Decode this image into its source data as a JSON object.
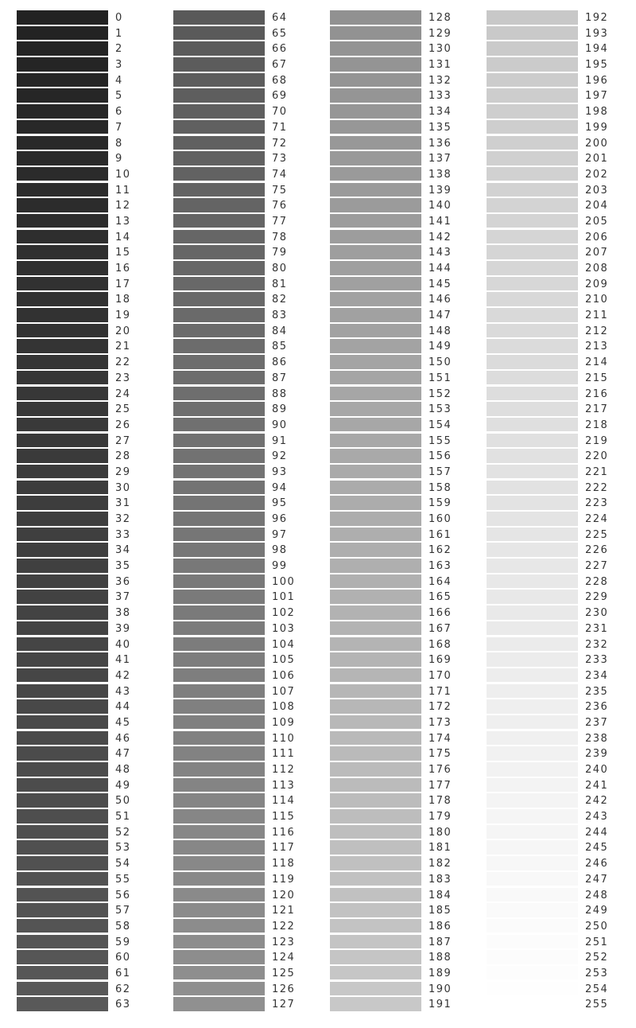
{
  "columns": [
    {
      "labels": [
        "0",
        "1",
        "2",
        "3",
        "4",
        "5",
        "6",
        "7",
        "8",
        "9",
        "10",
        "11",
        "12",
        "13",
        "14",
        "15",
        "16",
        "17",
        "18",
        "19",
        "20",
        "21",
        "22",
        "23",
        "24",
        "25",
        "26",
        "27",
        "28",
        "29",
        "30",
        "31",
        "32",
        "33",
        "34",
        "35",
        "36",
        "37",
        "38",
        "39",
        "40",
        "41",
        "42",
        "43",
        "44",
        "45",
        "46",
        "47",
        "48",
        "49",
        "50",
        "51",
        "52",
        "53",
        "54",
        "55",
        "56",
        "57",
        "58",
        "59",
        "60",
        "61",
        "62",
        "63"
      ]
    },
    {
      "labels": [
        "64",
        "65",
        "66",
        "67",
        "68",
        "69",
        "70",
        "71",
        "72",
        "73",
        "74",
        "75",
        "76",
        "77",
        "78",
        "79",
        "80",
        "81",
        "82",
        "83",
        "84",
        "85",
        "86",
        "87",
        "88",
        "89",
        "90",
        "91",
        "92",
        "93",
        "94",
        "95",
        "96",
        "97",
        "98",
        "99",
        "100",
        "101",
        "102",
        "103",
        "104",
        "105",
        "106",
        "107",
        "108",
        "109",
        "110",
        "111",
        "112",
        "113",
        "114",
        "115",
        "116",
        "117",
        "118",
        "119",
        "120",
        "121",
        "122",
        "123",
        "124",
        "125",
        "126",
        "127"
      ]
    },
    {
      "labels": [
        "128",
        "129",
        "130",
        "131",
        "132",
        "133",
        "134",
        "135",
        "136",
        "137",
        "138",
        "139",
        "140",
        "141",
        "142",
        "143",
        "144",
        "145",
        "146",
        "147",
        "148",
        "149",
        "150",
        "151",
        "152",
        "153",
        "154",
        "155",
        "156",
        "157",
        "158",
        "159",
        "160",
        "161",
        "162",
        "163",
        "164",
        "165",
        "166",
        "167",
        "168",
        "169",
        "170",
        "171",
        "172",
        "173",
        "174",
        "175",
        "176",
        "177",
        "178",
        "179",
        "180",
        "181",
        "182",
        "183",
        "184",
        "185",
        "186",
        "187",
        "188",
        "189",
        "190",
        "191"
      ]
    },
    {
      "labels": [
        "192",
        "193",
        "194",
        "195",
        "196",
        "197",
        "198",
        "199",
        "200",
        "201",
        "202",
        "203",
        "204",
        "205",
        "206",
        "207",
        "208",
        "209",
        "210",
        "211",
        "212",
        "213",
        "214",
        "215",
        "216",
        "217",
        "218",
        "219",
        "220",
        "221",
        "222",
        "223",
        "224",
        "225",
        "226",
        "227",
        "228",
        "229",
        "230",
        "231",
        "232",
        "233",
        "234",
        "235",
        "236",
        "237",
        "238",
        "239",
        "240",
        "241",
        "242",
        "243",
        "244",
        "245",
        "246",
        "247",
        "248",
        "249",
        "250",
        "251",
        "252",
        "253",
        "254",
        "255"
      ]
    }
  ]
}
